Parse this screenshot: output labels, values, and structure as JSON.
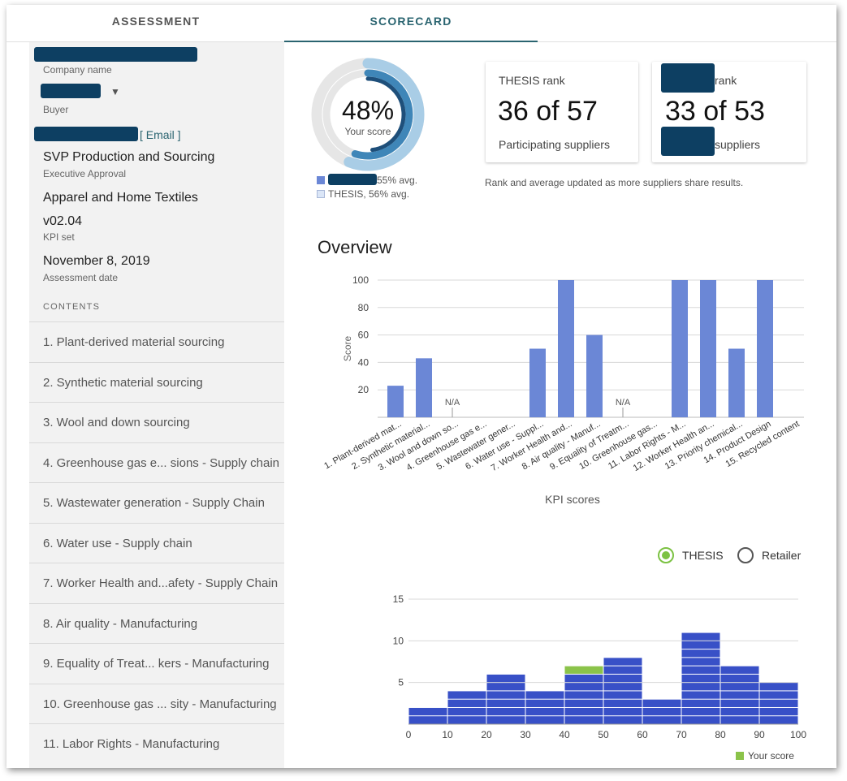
{
  "tabs": [
    {
      "label": "ASSESSMENT",
      "active": false
    },
    {
      "label": "SCORECARD",
      "active": true
    }
  ],
  "sidebar": {
    "company_label": "Company name",
    "buyer_label": "Buyer",
    "email_link": "[ Email ]",
    "approver_title": "SVP Production and Sourcing",
    "approver_label": "Executive Approval",
    "category": "Apparel and Home Textiles",
    "kpi_version": "v02.04",
    "kpi_label": "KPI set",
    "assessment_date": "November 8, 2019",
    "assessment_date_label": "Assessment date",
    "contents_label": "CONTENTS",
    "items": [
      "1. Plant-derived material sourcing",
      "2. Synthetic material sourcing",
      "3. Wool and down sourcing",
      "4. Greenhouse gas e... sions - Supply chain",
      "5. Wastewater generation - Supply Chain",
      "6. Water use - Supply chain",
      "7. Worker Health and...afety - Supply Chain",
      "8. Air quality - Manufacturing",
      "9. Equality of Treat...  kers - Manufacturing",
      "10. Greenhouse gas ... sity - Manufacturing",
      "11. Labor Rights - Manufacturing"
    ]
  },
  "score": {
    "value": "48%",
    "label": "Your score",
    "percent": 48,
    "buyer_avg_percent": 55,
    "thesis_avg_percent": 56,
    "buyer_avg_label": "55% avg.",
    "thesis_avg_label": "THESIS, 56% avg."
  },
  "rank_cards": [
    {
      "title": "THESIS rank",
      "value": "36 of 57",
      "sub": "Participating suppliers"
    },
    {
      "title": "rank",
      "value": "33 of 53",
      "sub": "suppliers"
    }
  ],
  "rank_note": "Rank and average updated as more suppliers share results.",
  "overview_title": "Overview",
  "radios": [
    {
      "label": "THESIS",
      "selected": true
    },
    {
      "label": "Retailer",
      "selected": false
    }
  ],
  "colors": {
    "bar_blue": "#6b87d6",
    "hist_blue": "#3850c7",
    "your_score_green": "#8bc34a",
    "ring_track": "#e6e6e6",
    "ring_dark": "#1e4f7a",
    "ring_mid": "#3f86b8",
    "ring_light": "#a9cde6",
    "redaction": "#0d3f62",
    "accent_teal": "#2a6470"
  },
  "chart_data": [
    {
      "type": "bar",
      "ylabel": "Score",
      "xlabel": "KPI scores",
      "ylim": [
        0,
        100
      ],
      "yticks": [
        20,
        40,
        60,
        80,
        100
      ],
      "na_label": "N/A",
      "categories": [
        "1. Plant-derived mat...",
        "2. Synthetic material...",
        "3. Wool and down so...",
        "4. Greenhouse gas e...",
        "5. Wastewater gener...",
        "6. Water use - Suppl...",
        "7. Worker Health and...",
        "8. Air quality - Manuf...",
        "9. Equality of Treatm...",
        "10. Greenhouse gas...",
        "11. Labor Rights - M...",
        "12. Worker Health an...",
        "13. Priority chemical...",
        "14. Product Design",
        "15. Recycled content"
      ],
      "values": [
        23,
        43,
        null,
        0,
        0,
        50,
        100,
        60,
        null,
        0,
        100,
        100,
        50,
        100,
        0
      ],
      "na": [
        false,
        false,
        true,
        false,
        false,
        false,
        false,
        false,
        true,
        false,
        false,
        false,
        false,
        false,
        false
      ]
    },
    {
      "type": "bar",
      "subtype": "histogram",
      "bins": [
        0,
        10,
        20,
        30,
        40,
        50,
        60,
        70,
        80,
        90,
        100
      ],
      "xticks": [
        "0",
        "10",
        "20",
        "30",
        "40",
        "50",
        "60",
        "70",
        "80",
        "90",
        "100"
      ],
      "yticks": [
        "5",
        "10",
        "15"
      ],
      "ylim": [
        0,
        15
      ],
      "counts": [
        2,
        4,
        6,
        4,
        7,
        8,
        3,
        11,
        7,
        5
      ],
      "your_score_bin": 4,
      "legend": "Your score"
    }
  ]
}
